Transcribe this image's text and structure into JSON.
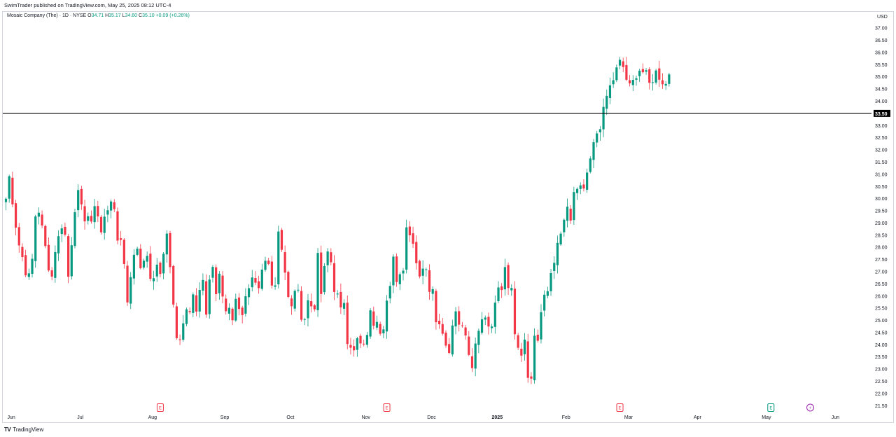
{
  "publisher_line": "SwimTrader published on TradingView.com, May 25, 2025 08:12 UTC-4",
  "legend": {
    "symbol": "Mosaic Company (The) · 1D · NYSE",
    "o_label": "O",
    "o": "34.71",
    "h_label": "H",
    "h": "35.17",
    "l_label": "L",
    "l": "34.60",
    "c_label": "C",
    "c": "35.10",
    "change": "+0.09 (+0.26%)"
  },
  "branding": {
    "logo": "TV",
    "text": "TradingView"
  },
  "colors": {
    "up": "#089981",
    "down": "#F23645",
    "line": "#000000",
    "grid": "#ffffff",
    "text": "#131722"
  },
  "chart_data": {
    "type": "candlestick",
    "currency": "USD",
    "ylim": [
      21.25,
      37.35
    ],
    "y_ticks": [
      "21.50",
      "22.00",
      "22.50",
      "23.00",
      "23.50",
      "24.00",
      "24.50",
      "25.00",
      "25.50",
      "26.00",
      "26.50",
      "27.00",
      "27.50",
      "28.00",
      "28.50",
      "29.00",
      "29.50",
      "30.00",
      "30.50",
      "31.00",
      "31.50",
      "32.00",
      "32.50",
      "33.00",
      "33.50",
      "34.00",
      "34.50",
      "35.00",
      "35.50",
      "36.00",
      "36.50",
      "37.00"
    ],
    "x_ticks": [
      {
        "label": "Jun",
        "index": 1
      },
      {
        "label": "Jul",
        "index": 22
      },
      {
        "label": "Aug",
        "index": 44
      },
      {
        "label": "Sep",
        "index": 66
      },
      {
        "label": "Oct",
        "index": 86
      },
      {
        "label": "Nov",
        "index": 109
      },
      {
        "label": "Dec",
        "index": 129
      },
      {
        "label": "2025",
        "index": 149
      },
      {
        "label": "Feb",
        "index": 170
      },
      {
        "label": "Mar",
        "index": 189
      },
      {
        "label": "Apr",
        "index": 210
      },
      {
        "label": "May",
        "index": 231
      },
      {
        "label": "Jun",
        "index": 252
      }
    ],
    "horizontal_line": {
      "price": 33.5,
      "label": "33.50"
    },
    "events": [
      {
        "type": "earnings",
        "label": "E",
        "index": 47,
        "color": "#F23645"
      },
      {
        "type": "earnings",
        "label": "E",
        "index": 116,
        "color": "#F23645"
      },
      {
        "type": "earnings",
        "label": "E",
        "index": 187,
        "color": "#F23645"
      },
      {
        "type": "earnings",
        "label": "E",
        "index": 233,
        "color": "#089981"
      },
      {
        "type": "dividend",
        "label": "⚡",
        "index": 245,
        "color": "#9C27B0"
      }
    ],
    "anchors": [
      [
        0,
        30.0
      ],
      [
        1,
        30.9
      ],
      [
        2,
        29.9
      ],
      [
        3,
        28.9
      ],
      [
        4,
        28.1
      ],
      [
        5,
        27.6
      ],
      [
        6,
        27.0
      ],
      [
        7,
        26.8
      ],
      [
        8,
        27.5
      ],
      [
        9,
        29.3
      ],
      [
        10,
        29.5
      ],
      [
        11,
        28.8
      ],
      [
        12,
        28.0
      ],
      [
        13,
        27.2
      ],
      [
        14,
        26.8
      ],
      [
        15,
        27.9
      ],
      [
        16,
        28.4
      ],
      [
        17,
        28.9
      ],
      [
        18,
        28.5
      ],
      [
        19,
        26.8
      ],
      [
        20,
        28.2
      ],
      [
        21,
        29.6
      ],
      [
        22,
        30.2
      ],
      [
        23,
        29.6
      ],
      [
        24,
        29.2
      ],
      [
        25,
        29.3
      ],
      [
        26,
        28.9
      ],
      [
        27,
        29.8
      ],
      [
        28,
        29.3
      ],
      [
        29,
        28.6
      ],
      [
        30,
        29.2
      ],
      [
        31,
        29.6
      ],
      [
        32,
        30.0
      ],
      [
        33,
        29.4
      ],
      [
        34,
        28.3
      ],
      [
        35,
        28.4
      ],
      [
        36,
        27.3
      ],
      [
        37,
        25.8
      ],
      [
        38,
        26.9
      ],
      [
        39,
        27.6
      ],
      [
        40,
        28.0
      ],
      [
        41,
        27.2
      ],
      [
        42,
        27.6
      ],
      [
        43,
        27.5
      ],
      [
        44,
        26.8
      ],
      [
        45,
        26.6
      ],
      [
        46,
        27.3
      ],
      [
        47,
        27.0
      ],
      [
        48,
        27.7
      ],
      [
        49,
        28.6
      ],
      [
        50,
        27.1
      ],
      [
        51,
        25.6
      ],
      [
        52,
        24.4
      ],
      [
        53,
        24.3
      ],
      [
        54,
        24.9
      ],
      [
        55,
        25.6
      ],
      [
        56,
        25.5
      ],
      [
        57,
        26.1
      ],
      [
        58,
        25.3
      ],
      [
        59,
        26.2
      ],
      [
        60,
        26.5
      ],
      [
        61,
        25.3
      ],
      [
        62,
        26.7
      ],
      [
        63,
        27.2
      ],
      [
        64,
        26.1
      ],
      [
        65,
        26.8
      ],
      [
        66,
        26.0
      ],
      [
        67,
        25.4
      ],
      [
        68,
        25.6
      ],
      [
        69,
        25.1
      ],
      [
        70,
        25.8
      ],
      [
        71,
        25.6
      ],
      [
        72,
        25.3
      ],
      [
        73,
        25.9
      ],
      [
        74,
        26.2
      ],
      [
        75,
        26.6
      ],
      [
        76,
        26.4
      ],
      [
        77,
        26.2
      ],
      [
        78,
        27.0
      ],
      [
        79,
        27.4
      ],
      [
        80,
        27.3
      ],
      [
        81,
        26.6
      ],
      [
        82,
        26.5
      ],
      [
        83,
        28.7
      ],
      [
        84,
        28.0
      ],
      [
        85,
        27.0
      ],
      [
        86,
        25.9
      ],
      [
        87,
        25.5
      ],
      [
        88,
        26.3
      ],
      [
        89,
        26.1
      ],
      [
        90,
        25.2
      ],
      [
        91,
        25.1
      ],
      [
        92,
        25.8
      ],
      [
        93,
        25.6
      ],
      [
        94,
        25.6
      ],
      [
        95,
        27.6
      ],
      [
        96,
        26.1
      ],
      [
        97,
        27.1
      ],
      [
        98,
        27.8
      ],
      [
        99,
        27.4
      ],
      [
        100,
        26.3
      ],
      [
        101,
        26.0
      ],
      [
        102,
        25.4
      ],
      [
        103,
        25.8
      ],
      [
        104,
        24.2
      ],
      [
        105,
        24.0
      ],
      [
        106,
        23.7
      ],
      [
        107,
        24.2
      ],
      [
        108,
        24.0
      ],
      [
        109,
        23.9
      ],
      [
        110,
        24.5
      ],
      [
        111,
        25.3
      ],
      [
        112,
        24.9
      ],
      [
        113,
        25.1
      ],
      [
        114,
        24.6
      ],
      [
        115,
        24.8
      ],
      [
        116,
        25.8
      ],
      [
        117,
        26.3
      ],
      [
        118,
        27.5
      ],
      [
        119,
        26.7
      ],
      [
        120,
        26.9
      ],
      [
        121,
        27.2
      ],
      [
        122,
        28.9
      ],
      [
        123,
        28.5
      ],
      [
        124,
        28.3
      ],
      [
        125,
        27.4
      ],
      [
        126,
        26.9
      ],
      [
        127,
        27.2
      ],
      [
        128,
        27.0
      ],
      [
        129,
        26.3
      ],
      [
        130,
        26.4
      ],
      [
        131,
        25.1
      ],
      [
        132,
        24.8
      ],
      [
        133,
        24.6
      ],
      [
        134,
        24.0
      ],
      [
        135,
        23.8
      ],
      [
        136,
        24.8
      ],
      [
        137,
        25.4
      ],
      [
        138,
        25.0
      ],
      [
        139,
        24.7
      ],
      [
        140,
        24.4
      ],
      [
        141,
        23.5
      ],
      [
        142,
        23.1
      ],
      [
        143,
        23.9
      ],
      [
        144,
        24.5
      ],
      [
        145,
        25.0
      ],
      [
        146,
        25.2
      ],
      [
        147,
        24.8
      ],
      [
        148,
        24.9
      ],
      [
        149,
        25.6
      ],
      [
        150,
        26.5
      ],
      [
        151,
        26.4
      ],
      [
        152,
        27.3
      ],
      [
        153,
        26.4
      ],
      [
        154,
        26.5
      ],
      [
        155,
        24.4
      ],
      [
        156,
        23.9
      ],
      [
        157,
        23.6
      ],
      [
        158,
        24.2
      ],
      [
        159,
        22.5
      ],
      [
        160,
        22.6
      ],
      [
        161,
        24.4
      ],
      [
        162,
        24.3
      ],
      [
        163,
        25.2
      ],
      [
        164,
        26.0
      ],
      [
        165,
        26.2
      ],
      [
        166,
        26.8
      ],
      [
        167,
        27.3
      ],
      [
        168,
        28.2
      ],
      [
        169,
        28.4
      ],
      [
        170,
        29.0
      ],
      [
        171,
        29.7
      ],
      [
        172,
        29.1
      ],
      [
        173,
        30.2
      ],
      [
        174,
        30.3
      ],
      [
        175,
        30.4
      ],
      [
        176,
        30.4
      ],
      [
        177,
        30.9
      ],
      [
        178,
        31.6
      ],
      [
        179,
        32.2
      ],
      [
        180,
        32.7
      ],
      [
        181,
        33.0
      ],
      [
        182,
        33.6
      ],
      [
        183,
        34.2
      ],
      [
        184,
        34.6
      ],
      [
        185,
        34.9
      ],
      [
        186,
        35.3
      ],
      [
        187,
        35.6
      ],
      [
        188,
        35.4
      ],
      [
        189,
        34.9
      ],
      [
        190,
        34.6
      ],
      [
        191,
        34.8
      ],
      [
        192,
        35.1
      ],
      [
        193,
        35.3
      ],
      [
        194,
        35.2
      ],
      [
        195,
        35.1
      ],
      [
        196,
        34.7
      ],
      [
        197,
        34.9
      ],
      [
        198,
        35.2
      ],
      [
        199,
        35.0
      ],
      [
        200,
        34.8
      ],
      [
        201,
        34.7
      ],
      [
        202,
        35.1
      ]
    ],
    "last_candle": {
      "open": 34.71,
      "high": 35.17,
      "low": 34.6,
      "close": 35.1
    }
  }
}
